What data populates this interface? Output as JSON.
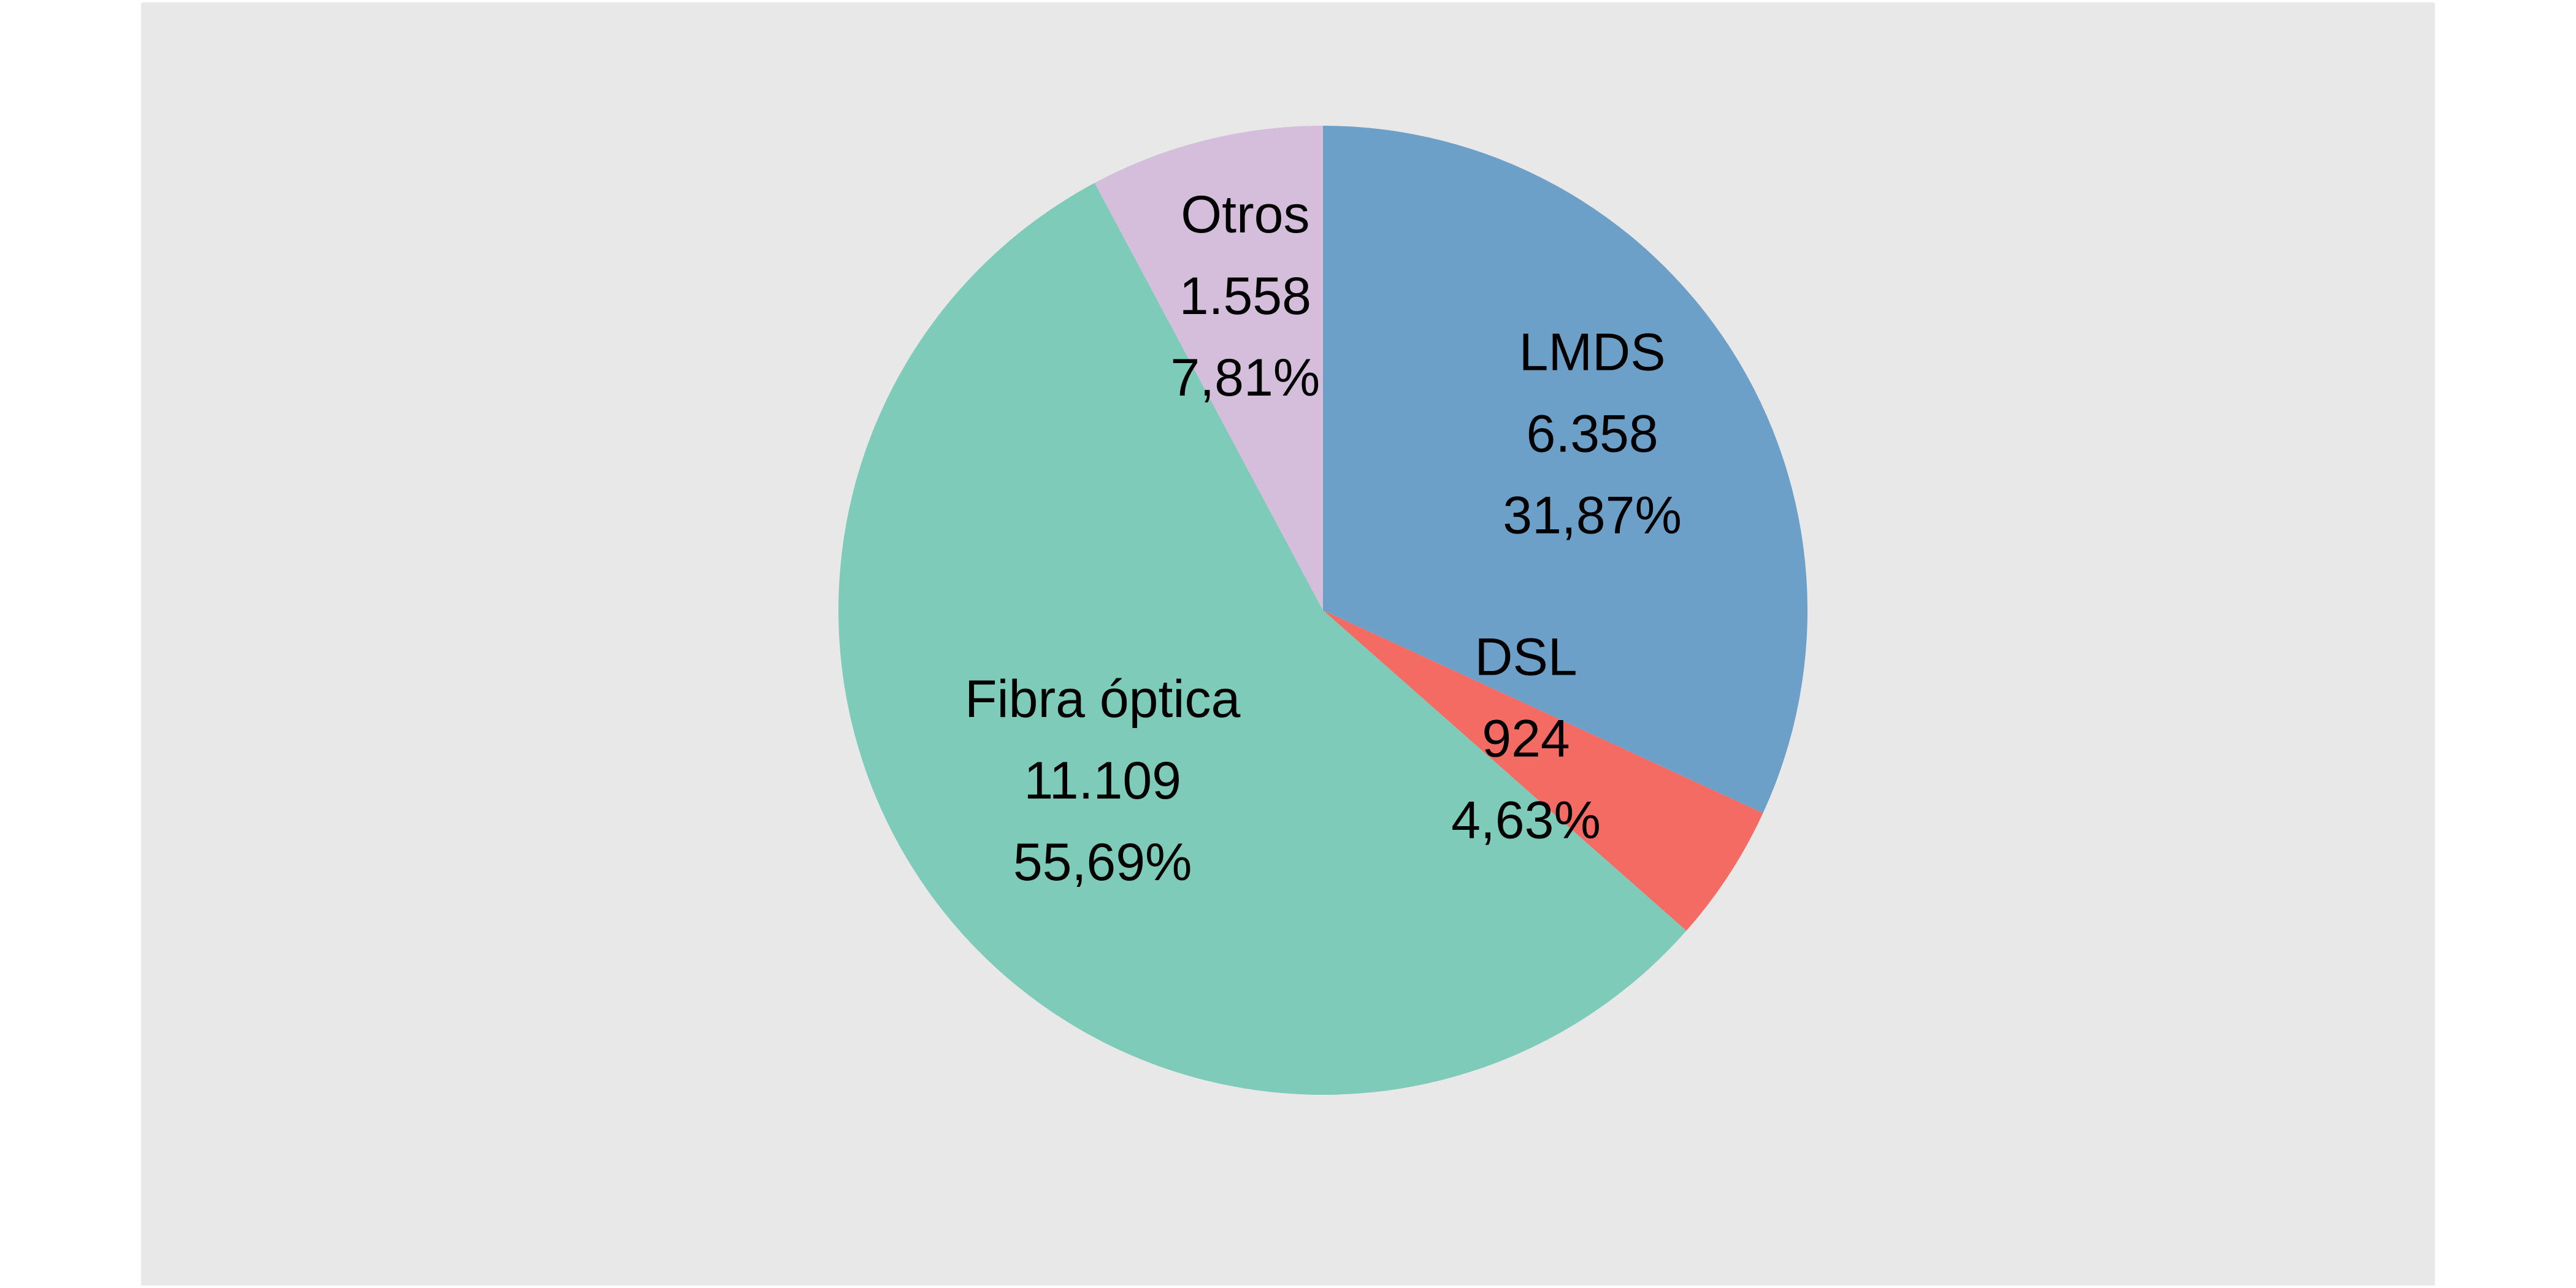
{
  "chart_data": {
    "type": "pie",
    "title": "",
    "start_angle_deg": 0,
    "direction": "clockwise",
    "slices": [
      {
        "label": "LMDS",
        "value": 6358,
        "value_text": "6.358",
        "percent_text": "31,87%",
        "color": "#6CA0C8"
      },
      {
        "label": "DSL",
        "value": 924,
        "value_text": "924",
        "percent_text": "4,63%",
        "color": "#F46B63"
      },
      {
        "label": "Fibra óptica",
        "value": 11109,
        "value_text": "11.109",
        "percent_text": "55,69%",
        "color": "#7ECBBA"
      },
      {
        "label": "Otros",
        "value": 1558,
        "value_text": "1.558",
        "percent_text": "7,81%",
        "color": "#D4BEDC"
      }
    ]
  },
  "colors": {
    "panel_background": "#E8E8E8",
    "page_background": "#FFFFFF"
  }
}
